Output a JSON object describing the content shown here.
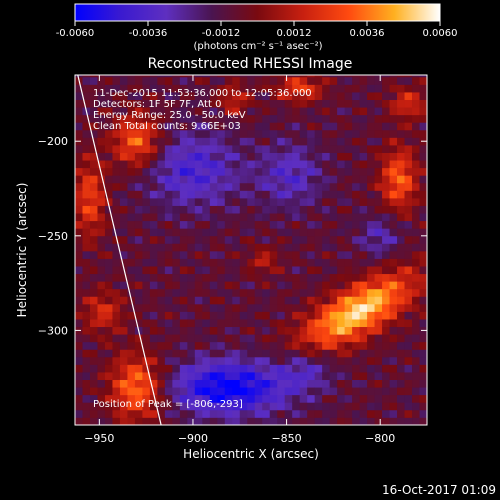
{
  "colorbar": {
    "tick_labels": [
      "-0.0060",
      "-0.0036",
      "-0.0012",
      "0.0012",
      "0.0036",
      "0.0060"
    ],
    "units": "(photons cm⁻² s⁻¹ asec⁻²)",
    "colors": [
      "#0000ff",
      "#3a1ad0",
      "#5e2fc0",
      "#4a1450",
      "#7a0a10",
      "#c82010",
      "#ff4a10",
      "#ffb020",
      "#ffffff"
    ]
  },
  "title": "Reconstructed RHESSI Image",
  "info": {
    "time_range": "11-Dec-2015 11:53:36.000 to 12:05:36.000",
    "detectors": "Detectors: 1F 5F 7F, Att 0",
    "energy": "Energy Range: 25.0 - 50.0 keV",
    "clean": "Clean    Total counts: 9.66E+03",
    "peak": "Position of Peak = [-806,-293]"
  },
  "footer": "16-Oct-2017 01:09",
  "chart_data": {
    "type": "heatmap",
    "title": "Reconstructed RHESSI Image",
    "xlabel": "Heliocentric X (arcsec)",
    "ylabel": "Heliocentric Y (arcsec)",
    "xlim": [
      -963,
      -775
    ],
    "ylim": [
      -350,
      -165
    ],
    "x_ticks": [
      -950,
      -900,
      -850,
      -800
    ],
    "x_tick_labels": [
      "−950",
      "−900",
      "−850",
      "−800"
    ],
    "y_ticks": [
      -200,
      -250,
      -300
    ],
    "y_tick_labels": [
      "−200",
      "−250",
      "−300"
    ],
    "value_range": [
      -0.006,
      0.006
    ],
    "peak": [
      -806,
      -293
    ],
    "limb_line": [
      [
        -962,
        -163
      ],
      [
        -917,
        -350
      ]
    ],
    "sources": [
      {
        "x": -812,
        "y": -290,
        "amp": 0.0062,
        "sx": 24,
        "sy": 9,
        "rot": -30
      },
      {
        "x": -930,
        "y": -330,
        "amp": 0.0046,
        "sx": 10,
        "sy": 12,
        "rot": 0
      },
      {
        "x": -930,
        "y": -200,
        "amp": 0.0042,
        "sx": 9,
        "sy": 10,
        "rot": 0
      },
      {
        "x": -955,
        "y": -230,
        "amp": 0.0034,
        "sx": 6,
        "sy": 15,
        "rot": 0
      },
      {
        "x": -948,
        "y": -290,
        "amp": 0.0026,
        "sx": 8,
        "sy": 8,
        "rot": 0
      },
      {
        "x": -790,
        "y": -220,
        "amp": 0.004,
        "sx": 7,
        "sy": 12,
        "rot": 0
      },
      {
        "x": -785,
        "y": -180,
        "amp": 0.0028,
        "sx": 7,
        "sy": 6,
        "rot": 0
      },
      {
        "x": -843,
        "y": -172,
        "amp": 0.0032,
        "sx": 9,
        "sy": 5,
        "rot": 0
      },
      {
        "x": -878,
        "y": -178,
        "amp": 0.0024,
        "sx": 6,
        "sy": 6,
        "rot": 0
      },
      {
        "x": -862,
        "y": -263,
        "amp": 0.002,
        "sx": 6,
        "sy": 5,
        "rot": 0
      },
      {
        "x": -900,
        "y": -215,
        "amp": -0.003,
        "sx": 18,
        "sy": 14,
        "rot": 0
      },
      {
        "x": -880,
        "y": -330,
        "amp": -0.0052,
        "sx": 22,
        "sy": 10,
        "rot": 0
      },
      {
        "x": -848,
        "y": -218,
        "amp": -0.0024,
        "sx": 12,
        "sy": 12,
        "rot": 0
      },
      {
        "x": -800,
        "y": -250,
        "amp": -0.002,
        "sx": 8,
        "sy": 8,
        "rot": 0
      },
      {
        "x": -840,
        "y": -320,
        "amp": -0.0022,
        "sx": 10,
        "sy": 8,
        "rot": 0
      }
    ]
  }
}
